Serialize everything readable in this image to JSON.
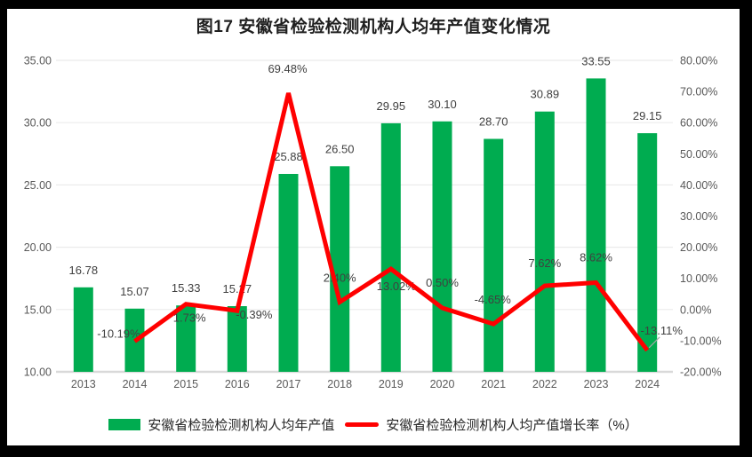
{
  "frame": {
    "background": "#000000",
    "chart_background": "#FFFFFF"
  },
  "chart_data": {
    "type": "combo",
    "title": "图17 安徽省检验检测机构人均年产值变化情况",
    "categories": [
      "2013",
      "2014",
      "2015",
      "2016",
      "2017",
      "2018",
      "2019",
      "2020",
      "2021",
      "2022",
      "2023",
      "2024"
    ],
    "series": [
      {
        "name": "安徽省检验检测机构人均年产值",
        "type": "bar",
        "axis": "left",
        "color": "#00AC50",
        "values": [
          16.78,
          15.07,
          15.33,
          15.27,
          25.88,
          26.5,
          29.95,
          30.1,
          28.7,
          30.89,
          33.55,
          29.15
        ],
        "labels": [
          "16.78",
          "15.07",
          "15.33",
          "15.27",
          "25.88",
          "26.50",
          "29.95",
          "30.10",
          "28.70",
          "30.89",
          "33.55",
          "29.15"
        ]
      },
      {
        "name": "安徽省检验检测机构人均产值增长率（%）",
        "type": "line",
        "axis": "right",
        "color": "#FF0000",
        "values": [
          null,
          -10.19,
          1.73,
          -0.39,
          69.48,
          2.4,
          13.02,
          0.5,
          -4.65,
          7.62,
          8.62,
          -13.11
        ],
        "labels": [
          "",
          "-10.19%",
          "1.73%",
          "-0.39%",
          "69.48%",
          "2.40%",
          "13.02%",
          "0.50%",
          "-4.65%",
          "7.62%",
          "8.62%",
          "-13.11%"
        ]
      }
    ],
    "left_axis": {
      "min": 10,
      "max": 35,
      "ticks": [
        "35.00",
        "30.00",
        "25.00",
        "20.00",
        "15.00",
        "10.00"
      ],
      "tick_values": [
        35,
        30,
        25,
        20,
        15,
        10
      ]
    },
    "right_axis": {
      "min": -20,
      "max": 80,
      "ticks": [
        "80.00%",
        "70.00%",
        "60.00%",
        "50.00%",
        "40.00%",
        "30.00%",
        "20.00%",
        "10.00%",
        "0.00%",
        "-10.00%",
        "-20.00%"
      ],
      "tick_values": [
        80,
        70,
        60,
        50,
        40,
        30,
        20,
        10,
        0,
        -10,
        -20
      ]
    },
    "grid": true,
    "legend_position": "bottom",
    "colors": {
      "gridline": "#EBEBEB",
      "axis_line": "#D9D9D9",
      "tick_text": "#595959",
      "data_label_text": "#404040",
      "leader_line": "#A6A6A6"
    }
  }
}
